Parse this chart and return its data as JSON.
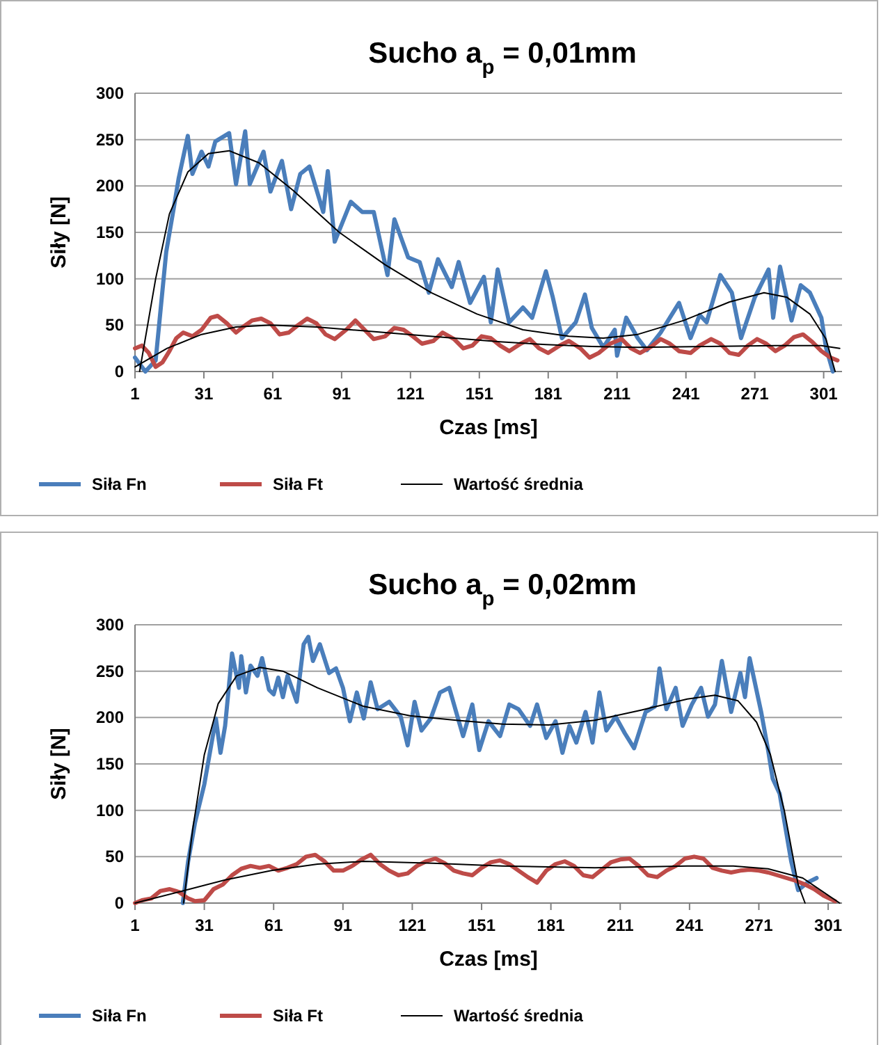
{
  "chart_data": [
    {
      "type": "line",
      "title": "Sucho a$_{p}$ = 0,01mm",
      "xlabel": "Czas [ms]",
      "ylabel": "Siły [N]",
      "xlim": [
        1,
        309
      ],
      "xticks": [
        1,
        31,
        61,
        91,
        121,
        151,
        181,
        211,
        241,
        271,
        301
      ],
      "ylim": [
        0,
        300
      ],
      "yticks": [
        0,
        50,
        100,
        150,
        200,
        250,
        300
      ],
      "grid": "y",
      "legend": "bottom",
      "marker": "none",
      "line_style": "solid",
      "series": [
        {
          "name": "Siła Fn",
          "color": "#4a7ebb",
          "x": [
            1,
            5.5,
            10,
            14.6,
            18,
            20,
            24,
            26,
            30,
            33,
            36,
            42,
            45,
            49,
            51,
            57,
            60,
            65,
            69,
            73,
            77,
            83,
            85,
            88,
            95,
            100,
            105,
            111,
            114,
            120,
            125,
            129,
            133,
            139,
            142,
            147,
            153,
            156,
            159,
            164,
            170,
            174,
            180,
            183,
            187,
            193,
            197,
            200,
            205,
            210,
            211,
            215,
            220,
            224,
            230,
            234,
            238,
            243,
            247,
            250,
            256,
            261,
            265,
            271,
            277,
            279,
            282,
            287,
            291,
            295,
            300,
            302,
            305
          ],
          "values": [
            15,
            0,
            12,
            129,
            178,
            208,
            254,
            213,
            237,
            221,
            248,
            257,
            202,
            259,
            202,
            237,
            194,
            227,
            175,
            213,
            221,
            172,
            216,
            140,
            183,
            172,
            172,
            104,
            164,
            123,
            118,
            85,
            121,
            91,
            118,
            74,
            102,
            53,
            110,
            53,
            69,
            58,
            108,
            80,
            36,
            53,
            83,
            47,
            26,
            45,
            17,
            58,
            36,
            23,
            42,
            58,
            74,
            36,
            61,
            53,
            104,
            85,
            36,
            80,
            110,
            58,
            113,
            55,
            93,
            85,
            58,
            26,
            0
          ]
        },
        {
          "name": "Siła Ft",
          "color": "#be4b48",
          "x": [
            1,
            4,
            7,
            10,
            13,
            16,
            19,
            22,
            26,
            30,
            34,
            37,
            41,
            45,
            48,
            52,
            56,
            60,
            64,
            68,
            72,
            76,
            80,
            84,
            88,
            93,
            97,
            101,
            105,
            110,
            114,
            118,
            122,
            126,
            131,
            135,
            140,
            144,
            148,
            152,
            156,
            160,
            164,
            169,
            173,
            177,
            181,
            186,
            190,
            195,
            199,
            203,
            208,
            213,
            217,
            221,
            226,
            230,
            234,
            238,
            243,
            247,
            252,
            256,
            260,
            264,
            268,
            272,
            276,
            280,
            284,
            288,
            292,
            296,
            300,
            304,
            307
          ],
          "values": [
            25,
            28,
            20,
            5,
            10,
            22,
            36,
            42,
            38,
            45,
            58,
            60,
            52,
            42,
            48,
            55,
            57,
            52,
            40,
            42,
            50,
            57,
            52,
            40,
            35,
            45,
            55,
            45,
            35,
            38,
            47,
            45,
            38,
            30,
            33,
            42,
            35,
            25,
            28,
            38,
            36,
            28,
            22,
            30,
            35,
            25,
            20,
            28,
            33,
            25,
            15,
            20,
            30,
            35,
            25,
            20,
            27,
            35,
            30,
            22,
            20,
            28,
            35,
            30,
            20,
            18,
            28,
            35,
            30,
            22,
            28,
            37,
            40,
            32,
            22,
            15,
            12
          ]
        },
        {
          "name": "Wartość średnia",
          "color": "#000000",
          "x": [
            3,
            10,
            16,
            24,
            33,
            42,
            55,
            70,
            90,
            110,
            130,
            150,
            170,
            190,
            205,
            220,
            240,
            260,
            275,
            285,
            295,
            302,
            306
          ],
          "values": [
            0,
            100,
            170,
            215,
            235,
            238,
            225,
            195,
            150,
            115,
            85,
            62,
            45,
            38,
            36,
            40,
            55,
            75,
            85,
            80,
            62,
            35,
            0
          ]
        },
        {
          "color": "#000000",
          "x": [
            1,
            15,
            30,
            45,
            60,
            80,
            100,
            120,
            140,
            160,
            180,
            200,
            220,
            250,
            280,
            300,
            308
          ],
          "values": [
            5,
            25,
            40,
            48,
            50,
            48,
            44,
            40,
            36,
            32,
            29,
            27,
            26,
            27,
            28,
            28,
            25
          ]
        }
      ]
    },
    {
      "type": "line",
      "title": "Sucho a$_{p}$ = 0,02mm",
      "xlabel": "Czas [ms]",
      "ylabel": "Siły [N]",
      "xlim": [
        1,
        307
      ],
      "xticks": [
        1,
        31,
        61,
        91,
        121,
        151,
        181,
        211,
        241,
        271,
        301
      ],
      "ylim": [
        0,
        300
      ],
      "yticks": [
        0,
        50,
        100,
        150,
        200,
        250,
        300
      ],
      "grid": "y",
      "legend": "bottom",
      "marker": "none",
      "line_style": "solid",
      "series": [
        {
          "name": "Siła Fn",
          "color": "#4a7ebb",
          "x": [
            21.7,
            24,
            27,
            31,
            36,
            38,
            40,
            43,
            46,
            47,
            49,
            51,
            54,
            56,
            59,
            61,
            63,
            65,
            67,
            71,
            74,
            76,
            78,
            81,
            85,
            88,
            91,
            94,
            97,
            100,
            103,
            106,
            111,
            116,
            119,
            122,
            125,
            129,
            133,
            137,
            140,
            143,
            147,
            150,
            154,
            159,
            163,
            167,
            172,
            175,
            179,
            183,
            186,
            189,
            192,
            196,
            199,
            202,
            205,
            209,
            213,
            217,
            222,
            226,
            228,
            231,
            235,
            238,
            242,
            246,
            249,
            252,
            255,
            259,
            263,
            265,
            267,
            272,
            275,
            277,
            280,
            285,
            288,
            292,
            296
          ],
          "values": [
            0,
            45,
            87,
            128,
            199,
            162,
            191,
            269,
            232,
            266,
            227,
            256,
            245,
            264,
            230,
            225,
            243,
            222,
            245,
            217,
            279,
            287,
            261,
            279,
            248,
            253,
            232,
            196,
            227,
            199,
            238,
            209,
            217,
            201,
            170,
            217,
            186,
            199,
            227,
            232,
            206,
            180,
            214,
            165,
            196,
            180,
            214,
            209,
            191,
            214,
            178,
            196,
            162,
            191,
            173,
            206,
            173,
            227,
            186,
            201,
            183,
            167,
            206,
            212,
            253,
            209,
            232,
            191,
            214,
            232,
            201,
            214,
            261,
            206,
            248,
            222,
            264,
            206,
            165,
            134,
            118,
            45,
            14,
            22,
            27
          ]
        },
        {
          "name": "Siła Ft",
          "color": "#be4b48",
          "x": [
            1,
            4,
            8,
            12,
            16,
            20,
            24,
            27,
            31,
            35,
            39,
            43,
            47,
            51,
            55,
            59,
            63,
            67,
            71,
            75,
            79,
            83,
            87,
            91,
            95,
            99,
            103,
            107,
            111,
            115,
            119,
            123,
            127,
            131,
            135,
            139,
            143,
            147,
            151,
            155,
            159,
            163,
            167,
            171,
            175,
            179,
            183,
            187,
            191,
            195,
            199,
            203,
            207,
            211,
            215,
            219,
            223,
            227,
            231,
            235,
            239,
            243,
            247,
            251,
            255,
            259,
            263,
            267,
            271,
            275,
            279,
            283,
            287,
            291,
            295,
            299,
            304
          ],
          "values": [
            0,
            3,
            5,
            13,
            15,
            12,
            5,
            2,
            3,
            15,
            20,
            30,
            37,
            40,
            38,
            40,
            35,
            38,
            42,
            50,
            52,
            45,
            35,
            35,
            40,
            47,
            52,
            42,
            35,
            30,
            32,
            40,
            45,
            48,
            43,
            35,
            32,
            30,
            38,
            44,
            46,
            42,
            35,
            28,
            22,
            35,
            42,
            45,
            40,
            30,
            28,
            36,
            44,
            47,
            48,
            40,
            30,
            28,
            35,
            40,
            48,
            50,
            48,
            38,
            35,
            33,
            35,
            36,
            35,
            33,
            30,
            27,
            24,
            20,
            15,
            8,
            2
          ]
        },
        {
          "name": "Wartość średnia",
          "color": "#000000",
          "x": [
            22,
            26,
            31,
            37,
            45,
            55,
            65,
            80,
            100,
            120,
            140,
            160,
            180,
            200,
            220,
            240,
            252,
            262,
            270,
            276,
            282,
            288,
            291
          ],
          "values": [
            0,
            80,
            160,
            215,
            245,
            254,
            250,
            232,
            212,
            202,
            197,
            193,
            192,
            197,
            208,
            220,
            224,
            218,
            195,
            160,
            100,
            20,
            0
          ]
        },
        {
          "color": "#000000",
          "x": [
            1,
            20,
            40,
            60,
            80,
            100,
            130,
            160,
            200,
            240,
            260,
            275,
            290,
            300,
            306
          ],
          "values": [
            0,
            12,
            25,
            35,
            42,
            45,
            43,
            40,
            38,
            40,
            40,
            37,
            27,
            10,
            0
          ]
        }
      ]
    }
  ]
}
